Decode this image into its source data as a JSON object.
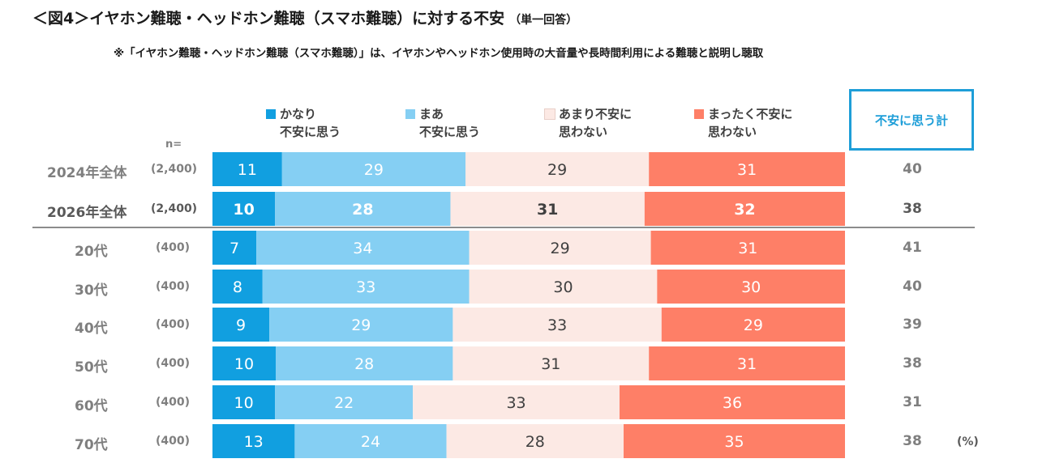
{
  "title": "＜図4＞イヤホン難聴・ヘッドホン難聴（スマホ難聴）に対する不安",
  "title_sub": "（単一回答）",
  "note": "※「イヤホン難聴・ヘッドホン難聴（スマホ難聴）」は、イヤホンやヘッドホン使用時の大音量や長時間利用による難聴と説明し聴取",
  "n_label": "n=",
  "total_header": "不安に思う計",
  "unit": "(%)",
  "colors": {
    "very_anxious": "#119fe0",
    "somewhat_anxious": "#85cff3",
    "not_very_anxious": "#fce9e4",
    "not_at_all_anxious": "#fe7f67"
  },
  "chart_data": {
    "type": "bar",
    "orientation": "horizontal",
    "stacked": "percent",
    "categories": [
      "2024年全体",
      "2026年全体",
      "20代",
      "30代",
      "40代",
      "50代",
      "60代",
      "70代"
    ],
    "n": [
      "(2,400)",
      "(2,400)",
      "(400)",
      "(400)",
      "(400)",
      "(400)",
      "(400)",
      "(400)"
    ],
    "series": [
      {
        "name": "かなり\n不安に思う",
        "values": [
          11,
          10,
          7,
          8,
          9,
          10,
          10,
          13
        ]
      },
      {
        "name": "まあ\n不安に思う",
        "values": [
          29,
          28,
          34,
          33,
          29,
          28,
          22,
          24
        ]
      },
      {
        "name": "あまり不安に\n思わない",
        "values": [
          29,
          31,
          29,
          30,
          33,
          31,
          33,
          28
        ]
      },
      {
        "name": "まったく不安に\n思わない",
        "values": [
          31,
          32,
          31,
          30,
          29,
          31,
          36,
          35
        ]
      }
    ],
    "totals": [
      40,
      38,
      41,
      40,
      39,
      38,
      31,
      38
    ],
    "bold_rows": [
      1
    ],
    "legend_position": "top"
  }
}
